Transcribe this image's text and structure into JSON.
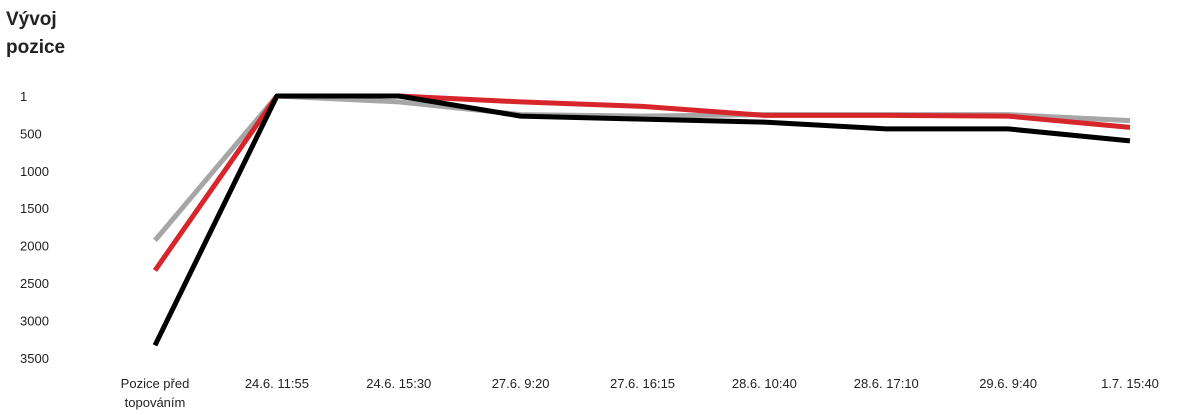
{
  "chart_data": {
    "type": "line",
    "title": "Vývoj pozice",
    "xlabel": "",
    "ylabel": "",
    "categories": [
      "Pozice před topováním",
      "24.6. 11:55",
      "24.6. 15:30",
      "27.6. 9:20",
      "27.6. 16:15",
      "28.6. 10:40",
      "28.6. 17:10",
      "29.6. 9:40",
      "1.7. 15:40"
    ],
    "yticks": [
      "1",
      "500",
      "1000",
      "1500",
      "2000",
      "2500",
      "3000",
      "3500"
    ],
    "ytick_values": [
      1,
      500,
      1000,
      1500,
      2000,
      2500,
      3000,
      3500
    ],
    "ylim": [
      1,
      3500
    ],
    "y_inverted": true,
    "grid": false,
    "legend": "none",
    "series": [
      {
        "color": "#a6a6a6",
        "values": [
          1930,
          1,
          80,
          250,
          270,
          250,
          250,
          250,
          330
        ]
      },
      {
        "color": "#d6262b",
        "values": [
          2330,
          1,
          1,
          80,
          140,
          260,
          260,
          270,
          420
        ]
      },
      {
        "color": "#000000",
        "values": [
          3330,
          1,
          1,
          270,
          310,
          350,
          440,
          440,
          600
        ]
      }
    ]
  }
}
